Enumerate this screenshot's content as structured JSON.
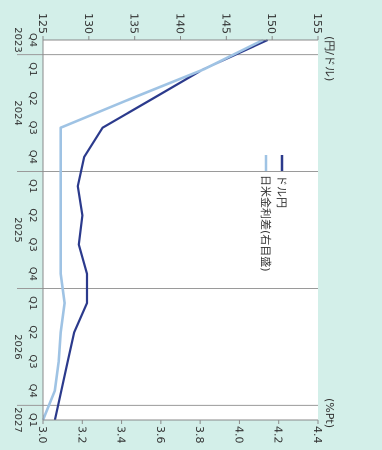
{
  "chart_data": {
    "type": "line",
    "orientation": "rotated-90-clockwise",
    "title": "",
    "units": {
      "left": "(円/ドル)",
      "right": "(%Pt)"
    },
    "quarters": [
      "Q4",
      "Q1",
      "Q2",
      "Q3",
      "Q4",
      "Q1",
      "Q2",
      "Q3",
      "Q4",
      "Q1",
      "Q2",
      "Q3",
      "Q4",
      "Q1"
    ],
    "years": [
      {
        "label": "2023",
        "start": 0,
        "end": 0
      },
      {
        "label": "2024",
        "start": 1,
        "end": 4
      },
      {
        "label": "2025",
        "start": 5,
        "end": 8
      },
      {
        "label": "2026",
        "start": 9,
        "end": 12
      },
      {
        "label": "2027",
        "start": 13,
        "end": 13
      }
    ],
    "y_left": {
      "min": 125,
      "max": 155,
      "ticks": [
        125,
        130,
        135,
        140,
        145,
        150,
        155
      ]
    },
    "y_right": {
      "min": 3.0,
      "max": 4.4,
      "ticks": [
        "3.0",
        "3.2",
        "3.4",
        "3.6",
        "3.8",
        "4.0",
        "4.2",
        "4.4"
      ]
    },
    "series": [
      {
        "name": "ドル円",
        "axis": "left",
        "color": "#2b3a8c",
        "values": [
          149.5,
          142.5,
          137.0,
          131.5,
          129.5,
          128.8,
          129.3,
          128.9,
          129.8,
          129.8,
          128.4,
          127.7,
          127.0,
          126.3
        ]
      },
      {
        "name": "日米金利差(右目盛)",
        "axis": "right",
        "color": "#9fc3e4",
        "values": [
          4.12,
          3.82,
          3.45,
          3.09,
          3.09,
          3.09,
          3.09,
          3.09,
          3.09,
          3.11,
          3.09,
          3.08,
          3.06,
          3.0
        ]
      }
    ]
  }
}
